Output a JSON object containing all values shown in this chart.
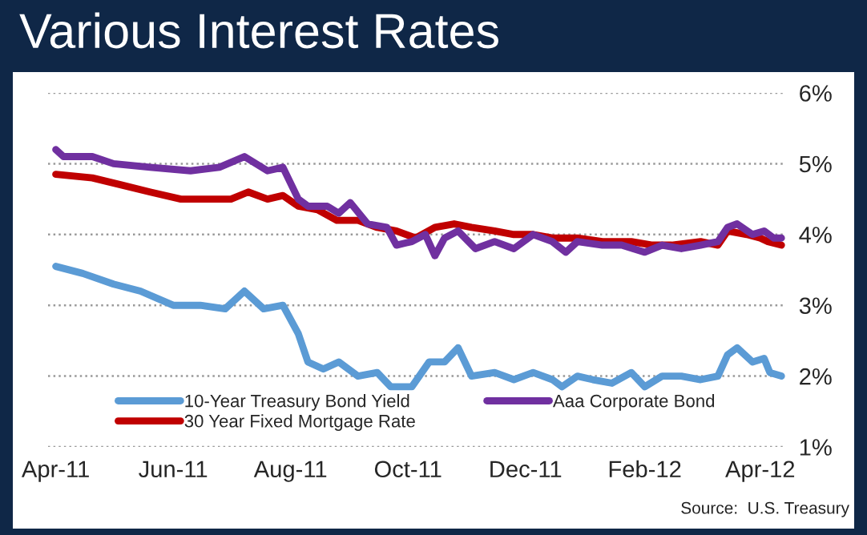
{
  "chart_data": {
    "type": "line",
    "title": "Various Interest Rates",
    "annotations": [
      "Source:  U.S. Treasury"
    ],
    "ylim": [
      1,
      6
    ],
    "yticks": [
      {
        "value": 1,
        "label": "1%"
      },
      {
        "value": 2,
        "label": "2%"
      },
      {
        "value": 3,
        "label": "3%"
      },
      {
        "value": 4,
        "label": "4%"
      },
      {
        "value": 5,
        "label": "5%"
      },
      {
        "value": 6,
        "label": "6%"
      }
    ],
    "xlim": [
      "2011-03-28",
      "2012-04-14"
    ],
    "xticks": [
      {
        "value": "2011-04-01",
        "label": "Apr-11"
      },
      {
        "value": "2011-06-01",
        "label": "Jun-11"
      },
      {
        "value": "2011-08-01",
        "label": "Aug-11"
      },
      {
        "value": "2011-10-01",
        "label": "Oct-11"
      },
      {
        "value": "2011-12-01",
        "label": "Dec-11"
      },
      {
        "value": "2012-02-01",
        "label": "Feb-12"
      },
      {
        "value": "2012-04-01",
        "label": "Apr-12"
      }
    ],
    "grid": "y",
    "legend": "bottom",
    "line_style": "solid",
    "marker": "none",
    "series": [
      {
        "name": "10-Year Treasury Bond Yield",
        "color": "#5b9bd5",
        "x": [
          "2011-04-01",
          "2011-04-15",
          "2011-05-01",
          "2011-05-15",
          "2011-06-01",
          "2011-06-15",
          "2011-06-28",
          "2011-07-08",
          "2011-07-18",
          "2011-07-28",
          "2011-08-05",
          "2011-08-10",
          "2011-08-18",
          "2011-08-26",
          "2011-09-05",
          "2011-09-15",
          "2011-09-22",
          "2011-10-03",
          "2011-10-12",
          "2011-10-20",
          "2011-10-27",
          "2011-11-03",
          "2011-11-15",
          "2011-11-25",
          "2011-12-05",
          "2011-12-15",
          "2011-12-20",
          "2011-12-28",
          "2012-01-05",
          "2012-01-15",
          "2012-01-25",
          "2012-02-01",
          "2012-02-10",
          "2012-02-20",
          "2012-03-01",
          "2012-03-10",
          "2012-03-15",
          "2012-03-20",
          "2012-03-28",
          "2012-04-03",
          "2012-04-06",
          "2012-04-12"
        ],
        "values": [
          3.55,
          3.45,
          3.3,
          3.2,
          3.0,
          3.0,
          2.95,
          3.2,
          2.95,
          3.0,
          2.6,
          2.2,
          2.1,
          2.2,
          2.0,
          2.05,
          1.85,
          1.85,
          2.2,
          2.2,
          2.4,
          2.0,
          2.05,
          1.95,
          2.05,
          1.95,
          1.85,
          2.0,
          1.95,
          1.9,
          2.05,
          1.85,
          2.0,
          2.0,
          1.95,
          2.0,
          2.3,
          2.4,
          2.2,
          2.25,
          2.05,
          2.0
        ]
      },
      {
        "name": "30 Year Fixed Mortgage Rate",
        "color": "#c00000",
        "x": [
          "2011-04-01",
          "2011-04-20",
          "2011-05-05",
          "2011-05-20",
          "2011-06-05",
          "2011-06-20",
          "2011-07-01",
          "2011-07-10",
          "2011-07-20",
          "2011-07-28",
          "2011-08-05",
          "2011-08-15",
          "2011-08-25",
          "2011-09-05",
          "2011-09-15",
          "2011-09-25",
          "2011-10-05",
          "2011-10-15",
          "2011-10-25",
          "2011-11-03",
          "2011-11-15",
          "2011-11-25",
          "2011-12-05",
          "2011-12-15",
          "2011-12-28",
          "2012-01-10",
          "2012-01-25",
          "2012-02-05",
          "2012-02-15",
          "2012-03-01",
          "2012-03-10",
          "2012-03-15",
          "2012-03-25",
          "2012-04-01",
          "2012-04-05",
          "2012-04-12"
        ],
        "values": [
          4.85,
          4.8,
          4.7,
          4.6,
          4.5,
          4.5,
          4.5,
          4.6,
          4.5,
          4.55,
          4.4,
          4.35,
          4.2,
          4.2,
          4.1,
          4.05,
          3.95,
          4.1,
          4.15,
          4.1,
          4.05,
          4.0,
          4.0,
          3.95,
          3.95,
          3.9,
          3.9,
          3.85,
          3.85,
          3.9,
          3.85,
          4.05,
          4.0,
          3.95,
          3.9,
          3.85
        ]
      },
      {
        "name": "Aaa Corporate Bond",
        "color": "#7030a0",
        "x": [
          "2011-04-01",
          "2011-04-05",
          "2011-04-20",
          "2011-05-01",
          "2011-05-20",
          "2011-06-10",
          "2011-06-25",
          "2011-07-08",
          "2011-07-20",
          "2011-07-28",
          "2011-08-05",
          "2011-08-10",
          "2011-08-20",
          "2011-08-26",
          "2011-09-01",
          "2011-09-10",
          "2011-09-20",
          "2011-09-25",
          "2011-10-03",
          "2011-10-10",
          "2011-10-15",
          "2011-10-20",
          "2011-10-27",
          "2011-11-05",
          "2011-11-15",
          "2011-11-25",
          "2011-12-05",
          "2011-12-15",
          "2011-12-22",
          "2011-12-28",
          "2012-01-10",
          "2012-01-20",
          "2012-02-01",
          "2012-02-10",
          "2012-02-20",
          "2012-03-01",
          "2012-03-10",
          "2012-03-15",
          "2012-03-20",
          "2012-03-28",
          "2012-04-03",
          "2012-04-08",
          "2012-04-12"
        ],
        "values": [
          5.2,
          5.1,
          5.1,
          5.0,
          4.95,
          4.9,
          4.95,
          5.1,
          4.9,
          4.95,
          4.5,
          4.4,
          4.4,
          4.3,
          4.45,
          4.15,
          4.1,
          3.85,
          3.9,
          4.0,
          3.7,
          3.95,
          4.05,
          3.8,
          3.9,
          3.8,
          4.0,
          3.9,
          3.75,
          3.9,
          3.85,
          3.85,
          3.75,
          3.85,
          3.8,
          3.85,
          3.9,
          4.1,
          4.15,
          4.0,
          4.05,
          3.95,
          3.95
        ]
      }
    ]
  }
}
